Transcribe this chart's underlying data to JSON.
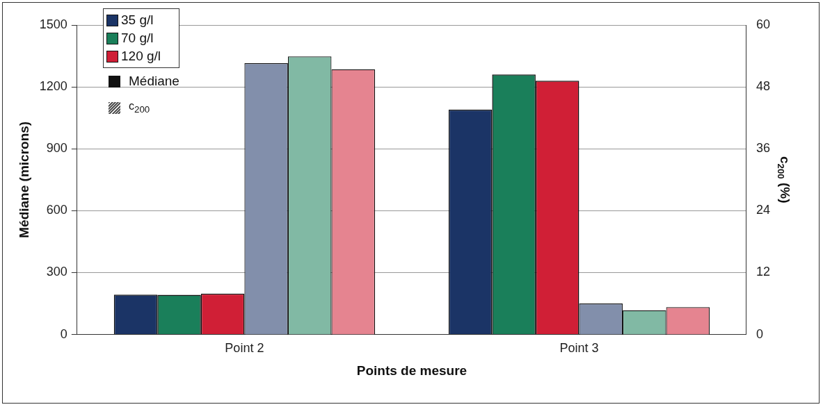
{
  "chart_data": {
    "type": "bar",
    "xlabel": "Points de mesure",
    "ylabel": "Médiane (microns)",
    "y2label": "c$_{200}$ (%)",
    "categories": [
      "Point 2",
      "Point 3"
    ],
    "series": [
      {
        "name": "35 g/l",
        "color": "#1b3466",
        "values": [
          193,
          1090
        ]
      },
      {
        "name": "70 g/l",
        "color": "#1a7f5a",
        "values": [
          192,
          1260
        ]
      },
      {
        "name": "120 g/l",
        "color": "#d01f36",
        "values": [
          198,
          1230
        ]
      },
      {
        "color": "#828fab",
        "axis": "y2",
        "values": [
          52.6,
          6.0
        ]
      },
      {
        "color": "#81b9a4",
        "axis": "y2",
        "values": [
          53.9,
          4.7
        ]
      },
      {
        "color": "#e58490",
        "axis": "y2",
        "values": [
          51.4,
          5.3
        ]
      }
    ],
    "ylim": [
      0,
      1500
    ],
    "yticks": [
      0,
      300,
      600,
      900,
      1200,
      1500
    ],
    "y2lim": [
      0,
      60
    ],
    "y2ticks": [
      0,
      12,
      24,
      36,
      48,
      60
    ],
    "grid": "y",
    "legend": "top left",
    "annotations": [
      "Médiane",
      "c$_{200}$"
    ]
  }
}
